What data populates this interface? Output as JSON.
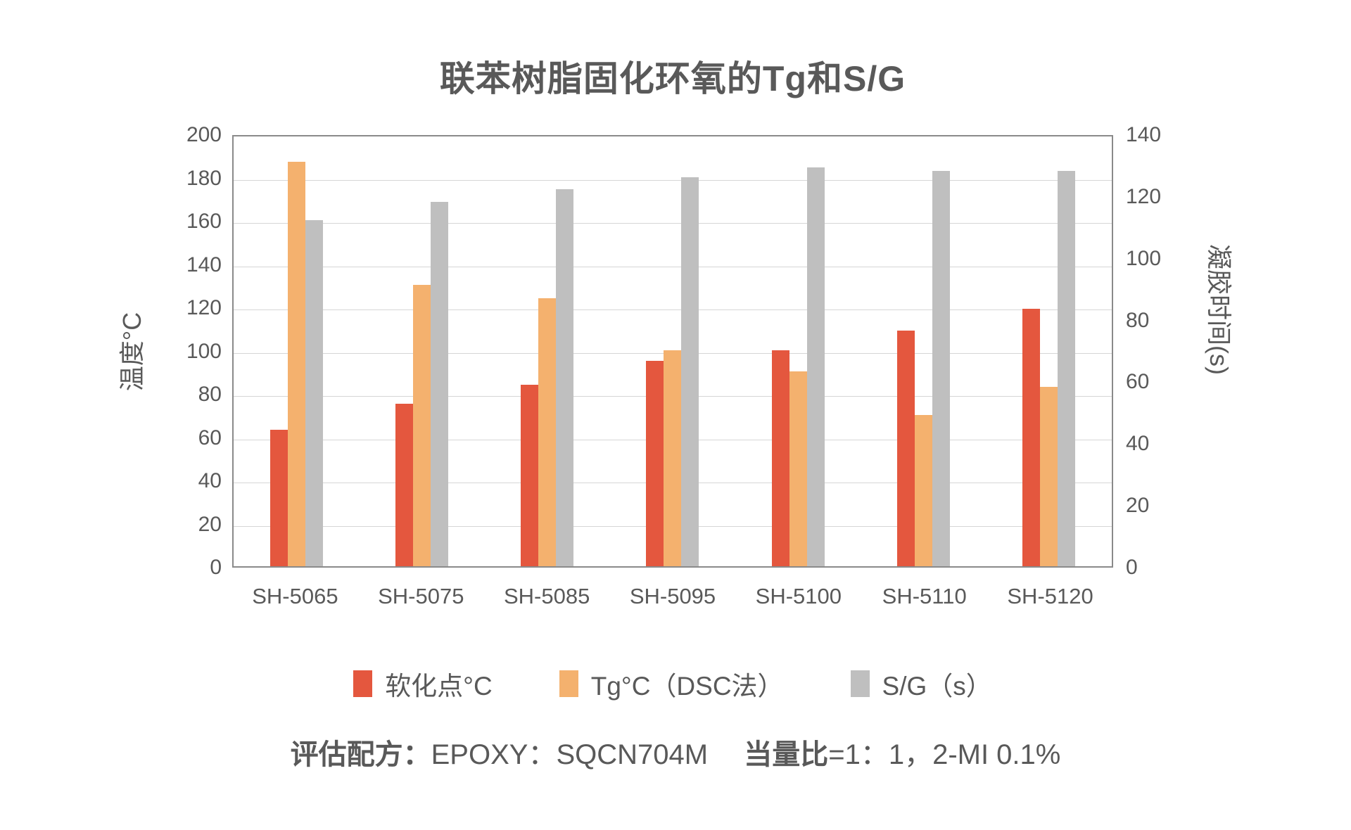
{
  "title": "联苯树脂固化环氧的Tg和S/G",
  "left_axis": {
    "title": "温度°C",
    "ticks": [
      200,
      180,
      160,
      140,
      120,
      100,
      80,
      60,
      40,
      20,
      0
    ],
    "max": 200
  },
  "right_axis": {
    "title": "凝胶时间(s)",
    "ticks": [
      140,
      120,
      100,
      80,
      60,
      40,
      20,
      0
    ],
    "max": 140
  },
  "chart_data": {
    "type": "bar",
    "title": "联苯树脂固化环氧的Tg和S/G",
    "categories": [
      "SH-5065",
      "SH-5075",
      "SH-5085",
      "SH-5095",
      "SH-5100",
      "SH-5110",
      "SH-5120"
    ],
    "series": [
      {
        "name": "软化点°C",
        "axis": "left",
        "color": "#E4573E",
        "values": [
          63,
          75,
          84,
          95,
          100,
          109,
          119
        ]
      },
      {
        "name": "Tg°C（DSC法）",
        "axis": "left",
        "color": "#F4B16E",
        "values": [
          187,
          130,
          124,
          100,
          90,
          70,
          83
        ]
      },
      {
        "name": "S/G（s）",
        "axis": "right",
        "color": "#BFBFBF",
        "values": [
          112,
          118,
          122,
          126,
          129,
          128,
          128
        ]
      }
    ],
    "left_ylim": [
      0,
      200
    ],
    "right_ylim": [
      0,
      140
    ],
    "grid": true,
    "legend_position": "bottom"
  },
  "legend": {
    "items": [
      {
        "label": "软化点°C",
        "color": "#E4573E"
      },
      {
        "label": "Tg°C（DSC法）",
        "color": "#F4B16E"
      },
      {
        "label": "S/G（s）",
        "color": "#BFBFBF"
      }
    ]
  },
  "footer": {
    "segments": [
      {
        "text": "评估配方：",
        "bold": true
      },
      {
        "text": "EPOXY：SQCN704M",
        "bold": false
      },
      {
        "text": "　 当量比",
        "bold": true
      },
      {
        "text": "=1：1，2-MI 0.1%",
        "bold": false
      }
    ]
  },
  "colors": {
    "text": "#595959",
    "gridline": "#D6D6D6",
    "plot_border": "#8A8A8A",
    "background": "#FFFFFF"
  }
}
